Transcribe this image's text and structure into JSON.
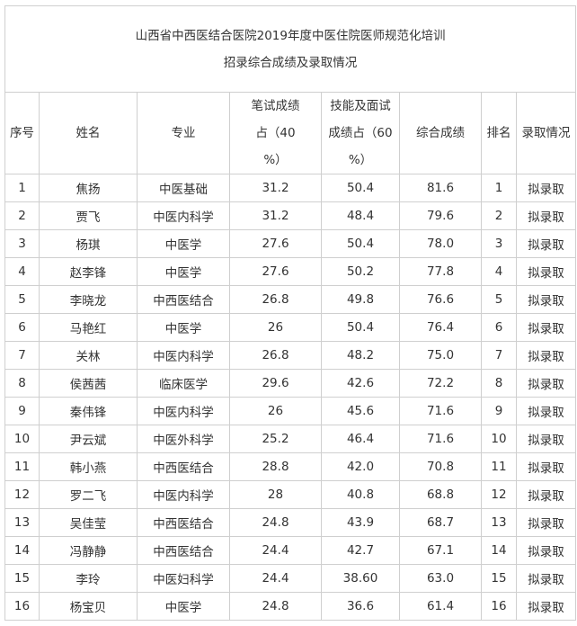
{
  "title": {
    "line1": "山西省中西医结合医院2019年度中医住院医师规范化培训",
    "line2": "招录综合成绩及录取情况"
  },
  "columns": [
    "序号",
    "姓名",
    "专业",
    "笔试成绩占（40 %）",
    "技能及面试成绩占（60 %）",
    "综合成绩",
    "排名",
    "录取情况"
  ],
  "rows": [
    [
      "1",
      "焦扬",
      "中医基础",
      "31.2",
      "50.4",
      "81.6",
      "1",
      "拟录取"
    ],
    [
      "2",
      "贾飞",
      "中医内科学",
      "31.2",
      "48.4",
      "79.6",
      "2",
      "拟录取"
    ],
    [
      "3",
      "杨琪",
      "中医学",
      "27.6",
      "50.4",
      "78.0",
      "3",
      "拟录取"
    ],
    [
      "4",
      "赵李锋",
      "中医学",
      "27.6",
      "50.2",
      "77.8",
      "4",
      "拟录取"
    ],
    [
      "5",
      "李晓龙",
      "中西医结合",
      "26.8",
      "49.8",
      "76.6",
      "5",
      "拟录取"
    ],
    [
      "6",
      "马艳红",
      "中医学",
      "26",
      "50.4",
      "76.4",
      "6",
      "拟录取"
    ],
    [
      "7",
      "关林",
      "中医内科学",
      "26.8",
      "48.2",
      "75.0",
      "7",
      "拟录取"
    ],
    [
      "8",
      "侯茜茜",
      "临床医学",
      "29.6",
      "42.6",
      "72.2",
      "8",
      "拟录取"
    ],
    [
      "9",
      "秦伟锋",
      "中医内科学",
      "26",
      "45.6",
      "71.6",
      "9",
      "拟录取"
    ],
    [
      "10",
      "尹云斌",
      "中医外科学",
      "25.2",
      "46.4",
      "71.6",
      "10",
      "拟录取"
    ],
    [
      "11",
      "韩小燕",
      "中西医结合",
      "28.8",
      "42.0",
      "70.8",
      "11",
      "拟录取"
    ],
    [
      "12",
      "罗二飞",
      "中医内科学",
      "28",
      "40.8",
      "68.8",
      "12",
      "拟录取"
    ],
    [
      "13",
      "吴佳莹",
      "中西医结合",
      "24.8",
      "43.9",
      "68.7",
      "13",
      "拟录取"
    ],
    [
      "14",
      "冯静静",
      "中西医结合",
      "24.4",
      "42.7",
      "67.1",
      "14",
      "拟录取"
    ],
    [
      "15",
      "李玲",
      "中医妇科学",
      "24.4",
      "38.60",
      "63.0",
      "15",
      "拟录取"
    ],
    [
      "16",
      "杨宝贝",
      "中医学",
      "24.8",
      "36.6",
      "61.4",
      "16",
      "拟录取"
    ]
  ]
}
